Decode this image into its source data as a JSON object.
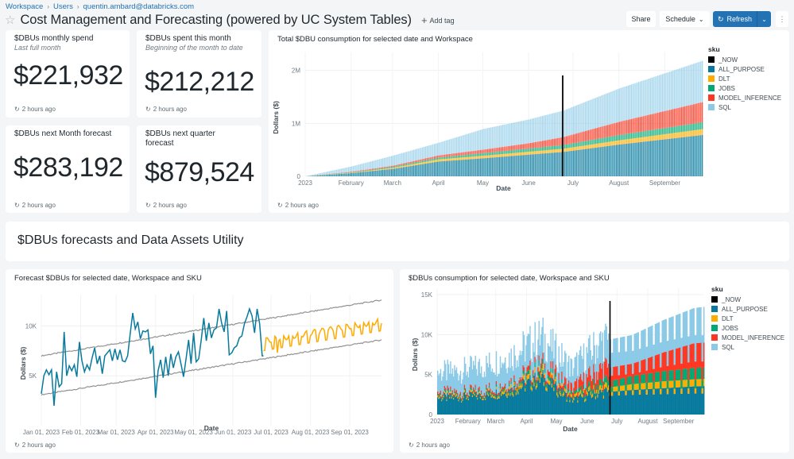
{
  "breadcrumb": [
    "Workspace",
    "Users",
    "quentin.ambard@databricks.com"
  ],
  "header": {
    "title": "Cost Management and Forecasting (powered by UC System Tables)",
    "add_tag": "Add tag",
    "share": "Share",
    "schedule": "Schedule",
    "refresh": "Refresh"
  },
  "counters": [
    {
      "title": "$DBUs monthly spend",
      "subtitle": "Last full month",
      "value": "$221,932",
      "updated": "2 hours ago"
    },
    {
      "title": "$DBUs spent this month",
      "subtitle": "Beginning of the month to date",
      "value": "$212,212",
      "updated": "2 hours ago"
    },
    {
      "title": "$DBUs next Month forecast",
      "subtitle": "",
      "value": "$283,192",
      "updated": "2 hours ago"
    },
    {
      "title": "$DBUs next quarter forecast",
      "subtitle": "",
      "value": "$879,524",
      "updated": "2 hours ago"
    }
  ],
  "section": {
    "title": "$DBUs forecasts and Data Assets Utility"
  },
  "colors": {
    "NOW": "#000000",
    "ALL_PURPOSE": "#077a9d",
    "DLT": "#ffab00",
    "JOBS": "#00a972",
    "MODEL_INFERENCE": "#ff3621",
    "SQL": "#8bcae7",
    "history_line": "#077a9d",
    "forecast_line": "#ffab00",
    "bound_line": "#919191",
    "accent": "#2272b4"
  },
  "chart_data": [
    {
      "id": "total",
      "type": "bar",
      "stacked": true,
      "cumulative": true,
      "title": "Total $DBU consumption for selected date and Workspace",
      "xlabel": "Date",
      "ylabel": "Dollars ($)",
      "ylim": [
        0,
        2200000
      ],
      "yticks": [
        {
          "v": 0,
          "label": "0"
        },
        {
          "v": 1000000,
          "label": "1M"
        },
        {
          "v": 2000000,
          "label": "2M"
        }
      ],
      "xticks": [
        "2023",
        "February",
        "March",
        "April",
        "May",
        "June",
        "July",
        "August",
        "September"
      ],
      "x_range": [
        "2023-01-01",
        "2023-09-26"
      ],
      "now_marker": "2023-06-24",
      "legend_title": "sku",
      "legend": [
        "_NOW",
        "ALL_PURPOSE",
        "DLT",
        "JOBS",
        "MODEL_INFERENCE",
        "SQL"
      ],
      "series_keypoints": {
        "x": [
          "2023-01-01",
          "2023-02-01",
          "2023-03-01",
          "2023-04-01",
          "2023-05-01",
          "2023-06-01",
          "2023-06-24",
          "2023-08-01",
          "2023-09-26"
        ],
        "ALL_PURPOSE": [
          0,
          60000,
          140000,
          280000,
          340000,
          410000,
          460000,
          600000,
          780000
        ],
        "DLT": [
          0,
          8000,
          20000,
          40000,
          48000,
          55000,
          60000,
          80000,
          110000
        ],
        "JOBS": [
          0,
          8000,
          20000,
          35000,
          50000,
          60000,
          70000,
          100000,
          130000
        ],
        "MODEL_INFERENCE": [
          0,
          10000,
          20000,
          40000,
          65000,
          100000,
          150000,
          250000,
          380000
        ],
        "SQL": [
          0,
          100000,
          190000,
          240000,
          390000,
          450000,
          500000,
          630000,
          780000
        ],
        "total": [
          0,
          186000,
          390000,
          635000,
          893000,
          1075000,
          1240000,
          1660000,
          2180000
        ]
      },
      "updated": "2 hours ago"
    },
    {
      "id": "forecast",
      "type": "line",
      "title": "Forecast $DBUs for selected date, Workspace and SKU",
      "xlabel": "Date",
      "ylabel": "Dollars ($)",
      "ylim": [
        0,
        12500
      ],
      "yticks": [
        {
          "v": 5000,
          "label": "5K"
        },
        {
          "v": 10000,
          "label": "10K"
        }
      ],
      "xticks": [
        "Jan 01, 2023",
        "Feb 01, 2023",
        "Mar 01, 2023",
        "Apr 01, 2023",
        "May 01, 2023",
        "Jun 01, 2023",
        "Jul 01, 2023",
        "Aug 01, 2023",
        "Sep 01, 2023"
      ],
      "xtick_days": [
        0,
        31,
        59,
        90,
        120,
        151,
        181,
        212,
        243
      ],
      "x_days_range": [
        0,
        268
      ],
      "history_end_day": 175,
      "history_keypoints": {
        "day": [
          0,
          2,
          4,
          6,
          8,
          10,
          12,
          14,
          16,
          18,
          20,
          22,
          24,
          26,
          28,
          30,
          32,
          34,
          36,
          38,
          40,
          42,
          44,
          46,
          48,
          50,
          52,
          54,
          56,
          58,
          60,
          62,
          64,
          66,
          68,
          70,
          72,
          74,
          76,
          78,
          80,
          82,
          84,
          86,
          88,
          90,
          92,
          94,
          96,
          98,
          100,
          102,
          104,
          106,
          108,
          110,
          112,
          114,
          116,
          118,
          120,
          122,
          124,
          126,
          128,
          130,
          132,
          134,
          136,
          138,
          140,
          142,
          144,
          146,
          148,
          150,
          152,
          154,
          156,
          158,
          160,
          162,
          164,
          166,
          168,
          170,
          172,
          174,
          175
        ],
        "value": [
          3200,
          5000,
          5600,
          5100,
          5600,
          2000,
          5400,
          3900,
          4200,
          9400,
          5000,
          6000,
          5500,
          6100,
          4900,
          8400,
          6500,
          5400,
          6100,
          5600,
          6800,
          7800,
          6200,
          7000,
          5200,
          7000,
          7300,
          7600,
          6500,
          7700,
          6600,
          7600,
          6500,
          6400,
          7000,
          9200,
          11300,
          9700,
          10400,
          8700,
          9500,
          9400,
          9600,
          7200,
          8000,
          2800,
          5500,
          6600,
          4800,
          6900,
          5000,
          7200,
          5800,
          6900,
          7400,
          6200,
          4900,
          6700,
          8600,
          6200,
          9300,
          6400,
          6700,
          8600,
          10800,
          8500,
          10300,
          8800,
          9600,
          9800,
          11700,
          10300,
          9400,
          11500,
          7100,
          7300,
          7800,
          8000,
          8800,
          9000,
          10200,
          10900,
          11700,
          11000,
          9300,
          11700,
          10200,
          7000,
          7000
        ]
      },
      "forecast_range_days": [
        175,
        268
      ],
      "forecast_trend": [
        8500,
        10500
      ],
      "forecast_weekly_amplitude": 700,
      "upper_bound": [
        7000,
        12600
      ],
      "lower_bound": [
        3100,
        8600
      ],
      "updated": "2 hours ago"
    },
    {
      "id": "consumption",
      "type": "bar",
      "stacked": true,
      "title": "$DBUs consumption for selected date, Workspace and SKU",
      "xlabel": "Date",
      "ylabel": "Dollars ($)",
      "ylim": [
        0,
        15000
      ],
      "yticks": [
        {
          "v": 0,
          "label": "0"
        },
        {
          "v": 5000,
          "label": "5K"
        },
        {
          "v": 10000,
          "label": "10K"
        },
        {
          "v": 15000,
          "label": "15K"
        }
      ],
      "xticks": [
        "2023",
        "February",
        "March",
        "April",
        "May",
        "June",
        "July",
        "August",
        "September"
      ],
      "x_range": [
        "2023-01-01",
        "2023-09-26"
      ],
      "now_marker": "2023-06-24",
      "legend_title": "sku",
      "legend": [
        "_NOW",
        "ALL_PURPOSE",
        "DLT",
        "JOBS",
        "MODEL_INFERENCE",
        "SQL"
      ],
      "series_keypoints": {
        "month": [
          "Jan",
          "Feb",
          "Mar",
          "Apr",
          "May",
          "Jun",
          "Jul",
          "Aug",
          "Sep"
        ],
        "ALL_PURPOSE": [
          2100,
          2300,
          3000,
          4500,
          1800,
          2800,
          3000,
          3100,
          3200
        ],
        "DLT": [
          200,
          200,
          400,
          600,
          300,
          500,
          700,
          800,
          800
        ],
        "JOBS": [
          200,
          200,
          300,
          500,
          300,
          700,
          1000,
          1200,
          1300
        ],
        "MODEL_INFERENCE": [
          300,
          300,
          400,
          600,
          900,
          1800,
          1500,
          2200,
          2800
        ],
        "SQL": [
          2500,
          3000,
          3300,
          3500,
          2500,
          3500,
          3500,
          3800,
          4000
        ]
      },
      "updated": "2 hours ago"
    }
  ]
}
